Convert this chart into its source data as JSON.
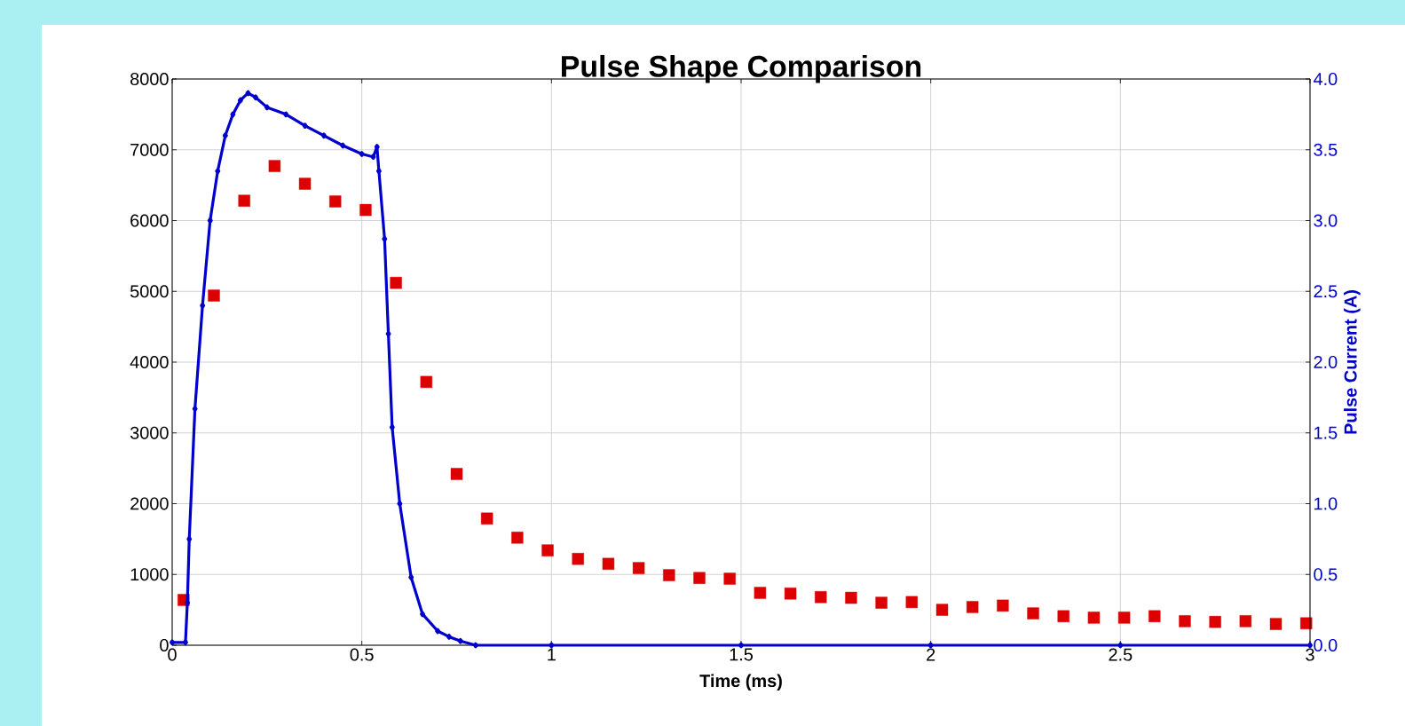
{
  "chart_data": {
    "type": "scatter",
    "title": "Pulse Shape Comparison",
    "xlabel": "Time (ms)",
    "y2label": "Pulse Current (A)",
    "xlim": [
      0,
      3
    ],
    "xticks": [
      0,
      0.5,
      1,
      1.5,
      2,
      2.5,
      3
    ],
    "ylim": [
      0,
      8000
    ],
    "yticks": [
      0,
      1000,
      2000,
      3000,
      4000,
      5000,
      6000,
      7000,
      8000
    ],
    "y2lim": [
      0,
      4
    ],
    "y2ticks": [
      {
        "value": 0,
        "label": "0.0"
      },
      {
        "value": 0.5,
        "label": "0.5"
      },
      {
        "value": 1,
        "label": "1.0"
      },
      {
        "value": 1.5,
        "label": "1.5"
      },
      {
        "value": 2,
        "label": "2.0"
      },
      {
        "value": 2.5,
        "label": "2.5"
      },
      {
        "value": 3,
        "label": "3.0"
      },
      {
        "value": 3.5,
        "label": "3.5"
      },
      {
        "value": 4,
        "label": "4.0"
      }
    ],
    "grid": true,
    "series": [
      {
        "color": "#dd0000",
        "marker": "square",
        "x": [
          0.03,
          0.11,
          0.19,
          0.27,
          0.35,
          0.43,
          0.51,
          0.59,
          0.67,
          0.75,
          0.83,
          0.91,
          0.99,
          1.07,
          1.15,
          1.23,
          1.31,
          1.39,
          1.47,
          1.55,
          1.63,
          1.71,
          1.79,
          1.87,
          1.95,
          2.03,
          2.11,
          2.19,
          2.27,
          2.35,
          2.43,
          2.51,
          2.59,
          2.67,
          2.75,
          2.83,
          2.91,
          2.99
        ],
        "values": [
          640,
          4940,
          6280,
          6770,
          6520,
          6270,
          6150,
          5120,
          3720,
          2420,
          1790,
          1520,
          1340,
          1220,
          1150,
          1090,
          990,
          950,
          940,
          740,
          730,
          680,
          670,
          600,
          610,
          500,
          540,
          560,
          450,
          410,
          390,
          390,
          410,
          340,
          330,
          340,
          300,
          310
        ]
      },
      {
        "type": "line",
        "axis": "y2",
        "color": "#0000cc",
        "marker": "diamond",
        "x": [
          0,
          0.035,
          0.04,
          0.045,
          0.06,
          0.08,
          0.1,
          0.12,
          0.14,
          0.16,
          0.18,
          0.2,
          0.22,
          0.25,
          0.3,
          0.35,
          0.4,
          0.45,
          0.5,
          0.53,
          0.54,
          0.545,
          0.56,
          0.57,
          0.58,
          0.6,
          0.63,
          0.66,
          0.7,
          0.73,
          0.76,
          0.8,
          1.0,
          1.5,
          2.0,
          2.5,
          3.0
        ],
        "values": [
          0.02,
          0.02,
          0.3,
          0.75,
          1.67,
          2.4,
          3.0,
          3.35,
          3.6,
          3.75,
          3.85,
          3.9,
          3.87,
          3.8,
          3.75,
          3.67,
          3.6,
          3.53,
          3.47,
          3.45,
          3.52,
          3.35,
          2.87,
          2.2,
          1.54,
          1.0,
          0.48,
          0.22,
          0.1,
          0.06,
          0.03,
          0.0,
          0.0,
          0.0,
          0.0,
          0.0,
          0.0
        ]
      }
    ]
  }
}
